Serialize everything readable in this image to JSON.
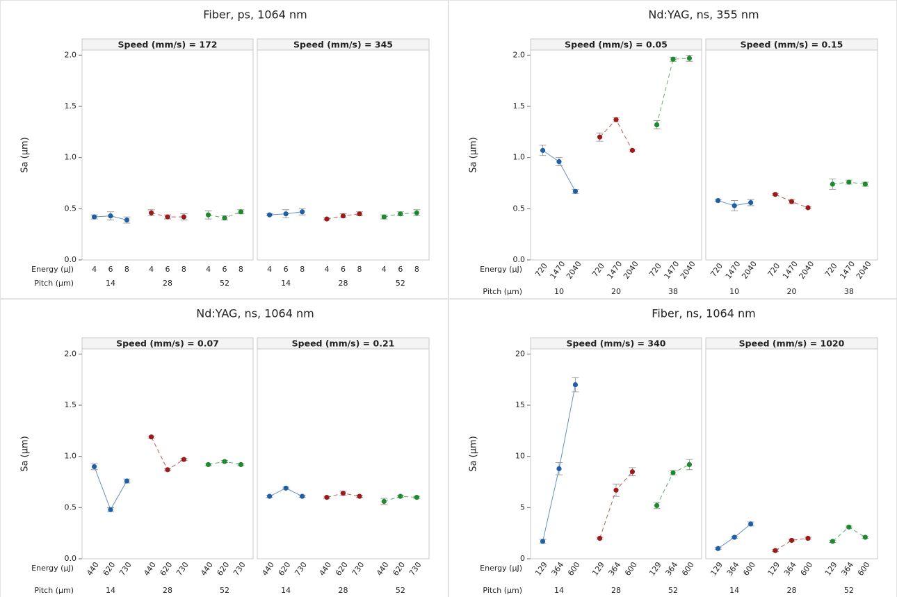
{
  "chart_data": [
    {
      "type": "line",
      "title": "Fiber, ps, 1064 nm",
      "ylabel": "Sa (µm)",
      "ylim": [
        0,
        2.05
      ],
      "yticks": [
        {
          "value": 0,
          "label": "0.0"
        },
        0.5,
        {
          "value": 1,
          "label": "1.0"
        },
        1.5,
        {
          "value": 2,
          "label": "2.0"
        }
      ],
      "row_labels": [
        "Energy (µJ)",
        "Pitch (µm)"
      ],
      "energy": [
        "4",
        "6",
        "8"
      ],
      "pitch": [
        "14",
        "28",
        "52"
      ],
      "colors": [
        "#1f5fa8",
        "#9c1a1a",
        "#1e8a2e"
      ],
      "panels": [
        {
          "label": "Speed (mm/s) = 172",
          "values": [
            [
              0.42,
              0.43,
              0.39
            ],
            [
              0.46,
              0.42,
              0.42
            ],
            [
              0.44,
              0.41,
              0.47
            ]
          ],
          "errors": [
            [
              0.02,
              0.04,
              0.03
            ],
            [
              0.03,
              0.02,
              0.03
            ],
            [
              0.04,
              0.02,
              0.02
            ]
          ]
        },
        {
          "label": "Speed (mm/s) = 345",
          "values": [
            [
              0.44,
              0.45,
              0.47
            ],
            [
              0.4,
              0.43,
              0.45
            ],
            [
              0.42,
              0.45,
              0.46
            ]
          ],
          "errors": [
            [
              0.01,
              0.04,
              0.03
            ],
            [
              0.01,
              0.02,
              0.02
            ],
            [
              0.02,
              0.02,
              0.03
            ]
          ]
        }
      ]
    },
    {
      "type": "line",
      "title": "Nd:YAG, ns, 355 nm",
      "ylabel": "Sa (µm)",
      "ylim": [
        0,
        2.05
      ],
      "yticks": [
        {
          "value": 0,
          "label": "0.0"
        },
        0.5,
        {
          "value": 1,
          "label": "1.0"
        },
        1.5,
        {
          "value": 2,
          "label": "2.0"
        }
      ],
      "row_labels": [
        "Energy (µJ)",
        "Pitch (µm)"
      ],
      "energy": [
        "720",
        "1470",
        "2040"
      ],
      "pitch": [
        "10",
        "20",
        "38"
      ],
      "colors": [
        "#1f5fa8",
        "#9c1a1a",
        "#1e8a2e"
      ],
      "panels": [
        {
          "label": "Speed (mm/s) = 0.05",
          "values": [
            [
              1.07,
              0.96,
              0.67
            ],
            [
              1.2,
              1.37,
              1.07
            ],
            [
              1.32,
              1.96,
              1.97
            ]
          ],
          "errors": [
            [
              0.05,
              0.04,
              0.02
            ],
            [
              0.04,
              0.02,
              0.01
            ],
            [
              0.04,
              0.02,
              0.03
            ]
          ]
        },
        {
          "label": "Speed (mm/s) = 0.15",
          "values": [
            [
              0.58,
              0.53,
              0.56
            ],
            [
              0.64,
              0.57,
              0.51
            ],
            [
              0.74,
              0.76,
              0.74
            ]
          ],
          "errors": [
            [
              0.01,
              0.05,
              0.03
            ],
            [
              0.01,
              0.02,
              0.01
            ],
            [
              0.05,
              0.02,
              0.02
            ]
          ]
        }
      ]
    },
    {
      "type": "line",
      "title": "Nd:YAG, ns, 1064 nm",
      "ylabel": "Sa (µm)",
      "ylim": [
        0,
        2.05
      ],
      "yticks": [
        {
          "value": 0,
          "label": "0.0"
        },
        0.5,
        {
          "value": 1,
          "label": "1.0"
        },
        1.5,
        {
          "value": 2,
          "label": "2.0"
        }
      ],
      "row_labels": [
        "Energy (µJ)",
        "Pitch (µm)"
      ],
      "energy": [
        "440",
        "620",
        "730"
      ],
      "pitch": [
        "14",
        "28",
        "52"
      ],
      "colors": [
        "#1f5fa8",
        "#9c1a1a",
        "#1e8a2e"
      ],
      "panels": [
        {
          "label": "Speed (mm/s) = 0.07",
          "values": [
            [
              0.9,
              0.48,
              0.76
            ],
            [
              1.19,
              0.87,
              0.97
            ],
            [
              0.92,
              0.95,
              0.92
            ]
          ],
          "errors": [
            [
              0.03,
              0.02,
              0.02
            ],
            [
              0.01,
              0.01,
              0.01
            ],
            [
              0.01,
              0.01,
              0.01
            ]
          ]
        },
        {
          "label": "Speed (mm/s) = 0.21",
          "values": [
            [
              0.61,
              0.69,
              0.61
            ],
            [
              0.6,
              0.64,
              0.61
            ],
            [
              0.56,
              0.61,
              0.6
            ]
          ],
          "errors": [
            [
              0.01,
              0.01,
              0.01
            ],
            [
              0.01,
              0.02,
              0.01
            ],
            [
              0.03,
              0.01,
              0.01
            ]
          ]
        }
      ]
    },
    {
      "type": "line",
      "title": "Fiber, ns, 1064 nm",
      "ylabel": "Sa (µm)",
      "ylim": [
        0,
        20.5
      ],
      "yticks": [
        0,
        5,
        10,
        15,
        20
      ],
      "row_labels": [
        "Energy (µJ)",
        "Pitch (µm)"
      ],
      "energy": [
        "129",
        "364",
        "600"
      ],
      "pitch": [
        "14",
        "28",
        "52"
      ],
      "colors": [
        "#1f5fa8",
        "#9c1a1a",
        "#1e8a2e"
      ],
      "panels": [
        {
          "label": "Speed (mm/s) = 340",
          "values": [
            [
              1.7,
              8.8,
              17.0
            ],
            [
              2.0,
              6.7,
              8.5
            ],
            [
              5.2,
              8.4,
              9.2
            ]
          ],
          "errors": [
            [
              0.2,
              0.6,
              0.7
            ],
            [
              0.1,
              0.6,
              0.4
            ],
            [
              0.3,
              0.2,
              0.5
            ]
          ]
        },
        {
          "label": "Speed (mm/s) = 1020",
          "values": [
            [
              1.0,
              2.1,
              3.4
            ],
            [
              0.8,
              1.8,
              2.0
            ],
            [
              1.7,
              3.1,
              2.1
            ]
          ],
          "errors": [
            [
              0.1,
              0.1,
              0.2
            ],
            [
              0.1,
              0.1,
              0.1
            ],
            [
              0.1,
              0.1,
              0.1
            ]
          ]
        }
      ]
    }
  ]
}
